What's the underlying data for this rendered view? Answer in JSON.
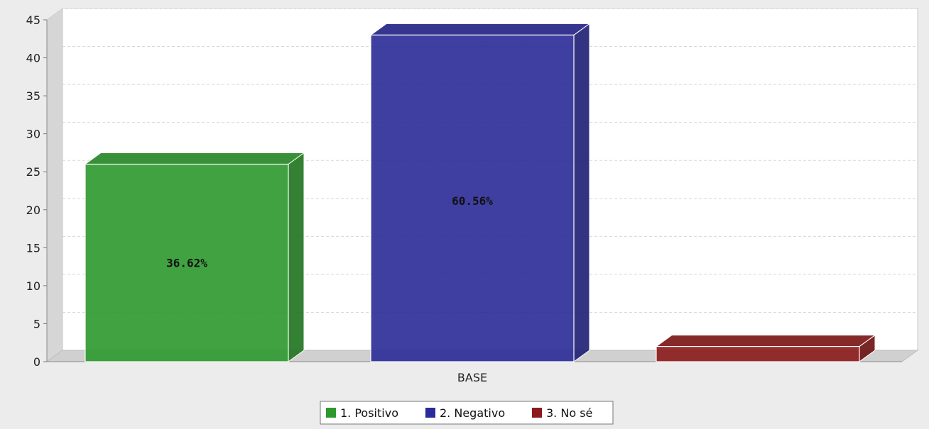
{
  "chart_data": {
    "type": "bar",
    "categories": [
      "BASE"
    ],
    "series": [
      {
        "name": "1. Positivo",
        "values": [
          26
        ],
        "label": "36.62%",
        "color": "#2d992d"
      },
      {
        "name": "2. Negativo",
        "values": [
          43
        ],
        "label": "60.56%",
        "color": "#2b2b99"
      },
      {
        "name": "3. No sé",
        "values": [
          2
        ],
        "label": "",
        "color": "#8c1a1a"
      }
    ],
    "title": "",
    "xlabel": "",
    "ylabel": "",
    "ylim": [
      0,
      45
    ],
    "yticks": [
      0,
      5,
      10,
      15,
      20,
      25,
      30,
      35,
      40,
      45
    ],
    "grid": true,
    "legend_position": "bottom",
    "style": "3d"
  }
}
